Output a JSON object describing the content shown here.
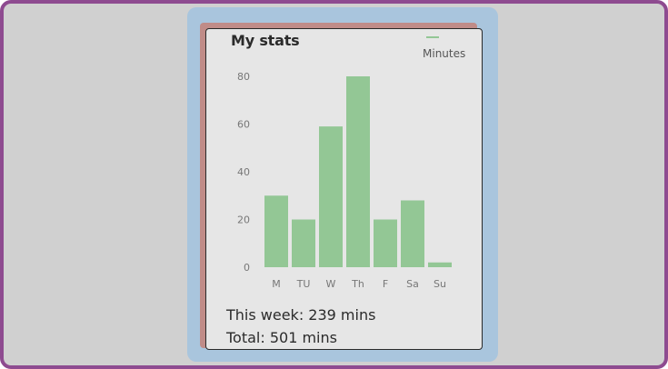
{
  "card": {
    "title": "My stats",
    "this_week": "This week: 239 mins",
    "total": "Total: 501 mins"
  },
  "colors": {
    "frame": "#8e4b90",
    "panel": "#a9c5dd",
    "bar": "#93c795",
    "card": "#e6e6e6"
  },
  "chart_data": {
    "type": "bar",
    "title": "",
    "xlabel": "",
    "ylabel": "",
    "categories": [
      "M",
      "TU",
      "W",
      "Th",
      "F",
      "Sa",
      "Su"
    ],
    "series": [
      {
        "name": "Minutes",
        "values": [
          30,
          20,
          59,
          80,
          20,
          28,
          2
        ]
      }
    ],
    "yticks": [
      0,
      20,
      40,
      60,
      80
    ],
    "ylim": [
      0,
      80
    ],
    "grid": false,
    "legend": "top-right"
  }
}
